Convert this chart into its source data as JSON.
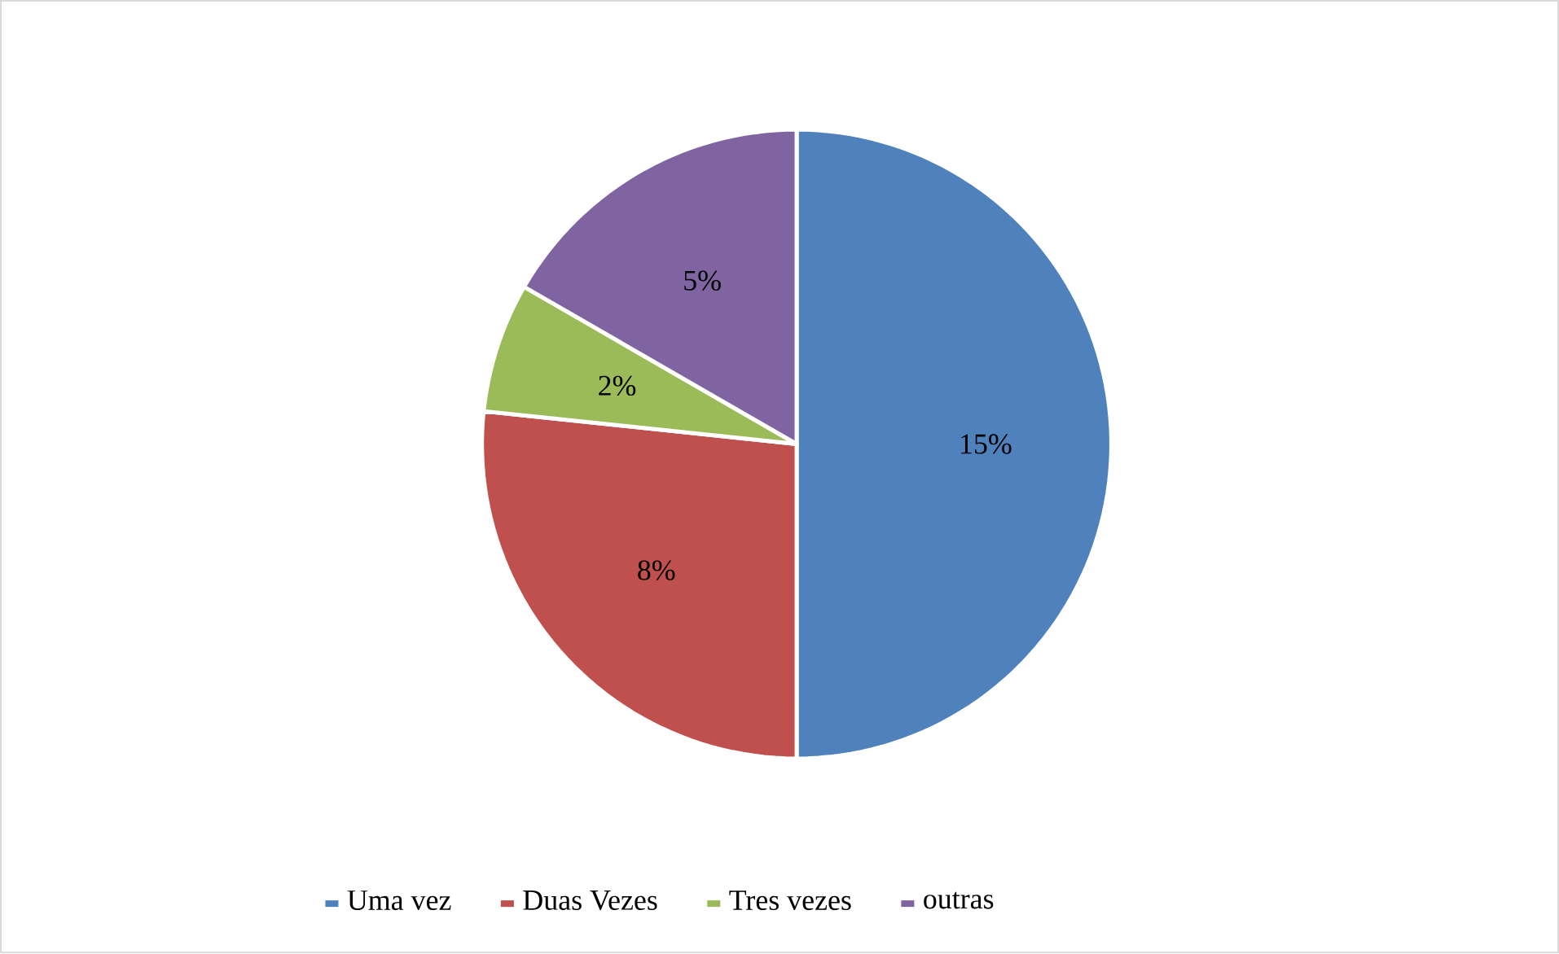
{
  "chart_data": {
    "type": "pie",
    "categories": [
      "Uma vez",
      "Duas Vezes",
      "Tres vezes",
      "outras"
    ],
    "values": [
      15,
      8,
      2,
      5
    ],
    "value_labels": [
      "15%",
      "8%",
      "2%",
      "5%"
    ],
    "colors": [
      "#4f81bd",
      "#c0504d",
      "#9bbb59",
      "#8064a2"
    ],
    "legend": "bottom"
  }
}
